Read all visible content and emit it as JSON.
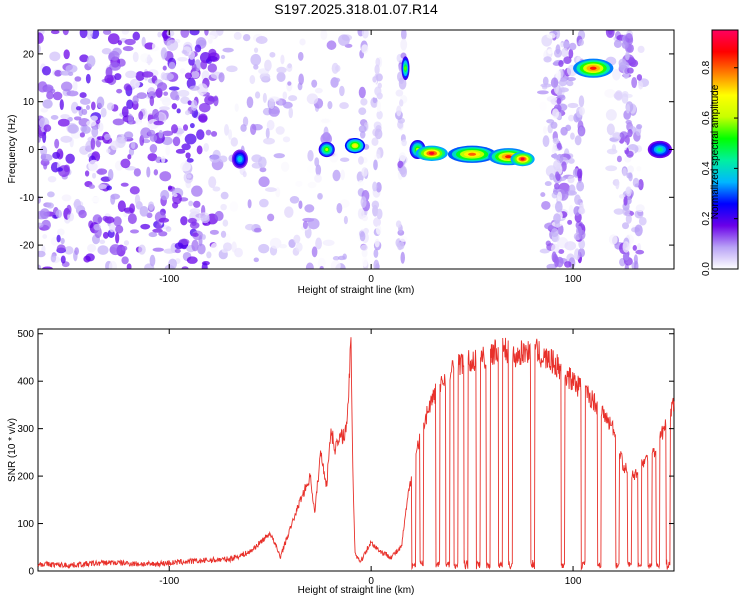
{
  "title": "S197.2025.318.01.07.R14",
  "chart_data": [
    {
      "type": "heatmap",
      "xlabel": "Height of straight line (km)",
      "ylabel": "Frequency (Hz)",
      "xlim": [
        -165,
        150
      ],
      "ylim": [
        -25,
        25
      ],
      "xticks": [
        -100,
        0,
        100
      ],
      "yticks": [
        -20,
        -10,
        0,
        10,
        20
      ],
      "colorbar": {
        "label": "Normalized spectral amplitude",
        "range": [
          0,
          0.95
        ],
        "ticks": [
          "0.0",
          "0.2",
          "0.4",
          "0.6",
          "0.8"
        ],
        "tick_values": [
          0,
          0.2,
          0.4,
          0.6,
          0.8
        ],
        "colors": [
          "#ffffff",
          "#b9a3f6",
          "#6a00e8",
          "#0000ff",
          "#00b7ff",
          "#00f0a0",
          "#00ff00",
          "#c8ff00",
          "#ffff00",
          "#ff8000",
          "#ff0000",
          "#ff0060"
        ]
      },
      "features": [
        {
          "x": 23,
          "y": 0,
          "w": 4,
          "h": 2.0,
          "amp": 0.6
        },
        {
          "x": 17,
          "y": 17,
          "w": 2,
          "h": 2.5,
          "amp": 0.55
        },
        {
          "x": 30,
          "y": -0.8,
          "w": 8,
          "h": 1.6,
          "amp": 0.9
        },
        {
          "x": 50,
          "y": -1.0,
          "w": 12,
          "h": 1.8,
          "amp": 0.8
        },
        {
          "x": 68,
          "y": -1.5,
          "w": 10,
          "h": 1.8,
          "amp": 0.85
        },
        {
          "x": 75,
          "y": -2.0,
          "w": 6,
          "h": 1.5,
          "amp": 0.9
        },
        {
          "x": 110,
          "y": 17,
          "w": 10,
          "h": 2.0,
          "amp": 0.85
        },
        {
          "x": -8,
          "y": 0.8,
          "w": 5,
          "h": 1.6,
          "amp": 0.7
        },
        {
          "x": -22,
          "y": 0,
          "w": 4,
          "h": 1.6,
          "amp": 0.6
        },
        {
          "x": -65,
          "y": -2,
          "w": 4,
          "h": 2.0,
          "amp": 0.4
        },
        {
          "x": 143,
          "y": 0,
          "w": 6,
          "h": 1.8,
          "amp": 0.45
        }
      ]
    },
    {
      "type": "line",
      "xlabel": "Height of straight line (km)",
      "ylabel": "SNR (10 * v/v)",
      "xlim": [
        -165,
        150
      ],
      "ylim": [
        0,
        510
      ],
      "xticks": [
        -100,
        0,
        100
      ],
      "yticks": [
        0,
        100,
        200,
        300,
        400,
        500
      ],
      "color": "#e8302a",
      "series": [
        {
          "x": [
            -165,
            -150,
            -130,
            -110,
            -90,
            -70,
            -60,
            -55,
            -50,
            -45,
            -40,
            -35,
            -30,
            -28,
            -25,
            -22,
            -20,
            -18,
            -15,
            -12,
            -10,
            -9,
            -8,
            -7,
            -5,
            -3,
            0,
            5,
            10,
            15,
            18,
            20,
            25,
            30,
            35,
            40,
            45,
            50,
            55,
            60,
            65,
            70,
            75,
            80,
            85,
            90,
            95,
            100,
            105,
            110,
            115,
            120,
            125,
            130,
            135,
            140,
            145,
            150
          ],
          "y": [
            15,
            12,
            18,
            14,
            20,
            25,
            40,
            60,
            80,
            30,
            90,
            150,
            200,
            120,
            250,
            180,
            300,
            260,
            280,
            300,
            480,
            200,
            40,
            30,
            20,
            40,
            60,
            40,
            30,
            50,
            150,
            200,
            300,
            360,
            400,
            420,
            440,
            440,
            450,
            460,
            470,
            450,
            460,
            470,
            450,
            440,
            420,
            400,
            380,
            360,
            330,
            300,
            220,
            200,
            230,
            250,
            300,
            350
          ]
        }
      ]
    }
  ]
}
